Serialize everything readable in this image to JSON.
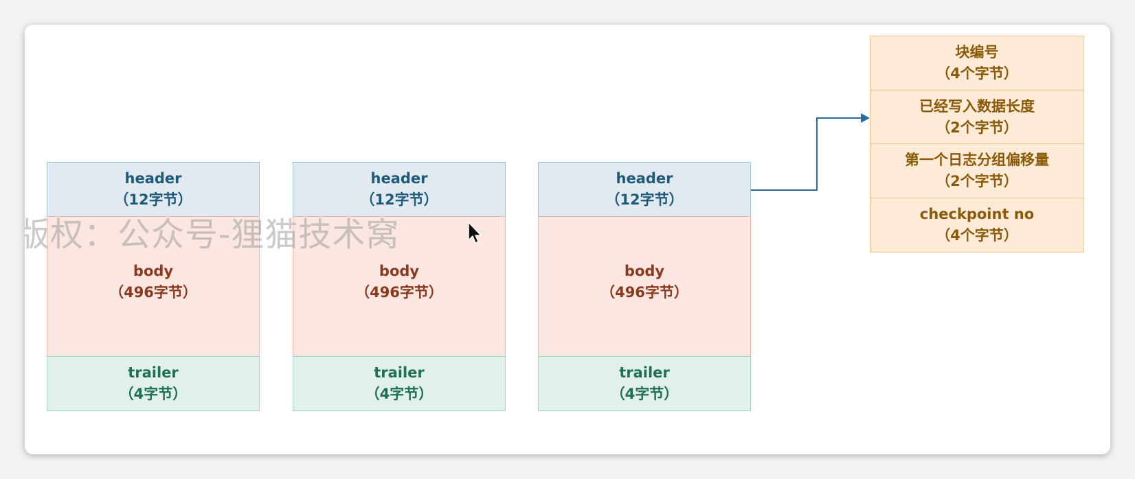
{
  "blocks": [
    {
      "header": {
        "name": "header",
        "size": "（12字节）"
      },
      "body": {
        "name": "body",
        "size": "（496字节）"
      },
      "trailer": {
        "name": "trailer",
        "size": "（4字节）"
      }
    },
    {
      "header": {
        "name": "header",
        "size": "（12字节）"
      },
      "body": {
        "name": "body",
        "size": "（496字节）"
      },
      "trailer": {
        "name": "trailer",
        "size": "（4字节）"
      }
    },
    {
      "header": {
        "name": "header",
        "size": "（12字节）"
      },
      "body": {
        "name": "body",
        "size": "（496字节）"
      },
      "trailer": {
        "name": "trailer",
        "size": "（4字节）"
      }
    }
  ],
  "header_detail": [
    {
      "name": "块编号",
      "size": "（4个字节）"
    },
    {
      "name": "已经写入数据长度",
      "size": "（2个字节）"
    },
    {
      "name": "第一个日志分组偏移量",
      "size": "（2个字节）"
    },
    {
      "name": "checkpoint no",
      "size": "（4个字节）"
    }
  ],
  "watermark": "版权：公众号-狸猫技术窝",
  "colors": {
    "header_fill": "#e1eaf0",
    "body_fill": "#fbe6e2",
    "trailer_fill": "#e1f1ea",
    "detail_fill": "#fdebd8",
    "connector": "#2b6a9a"
  }
}
